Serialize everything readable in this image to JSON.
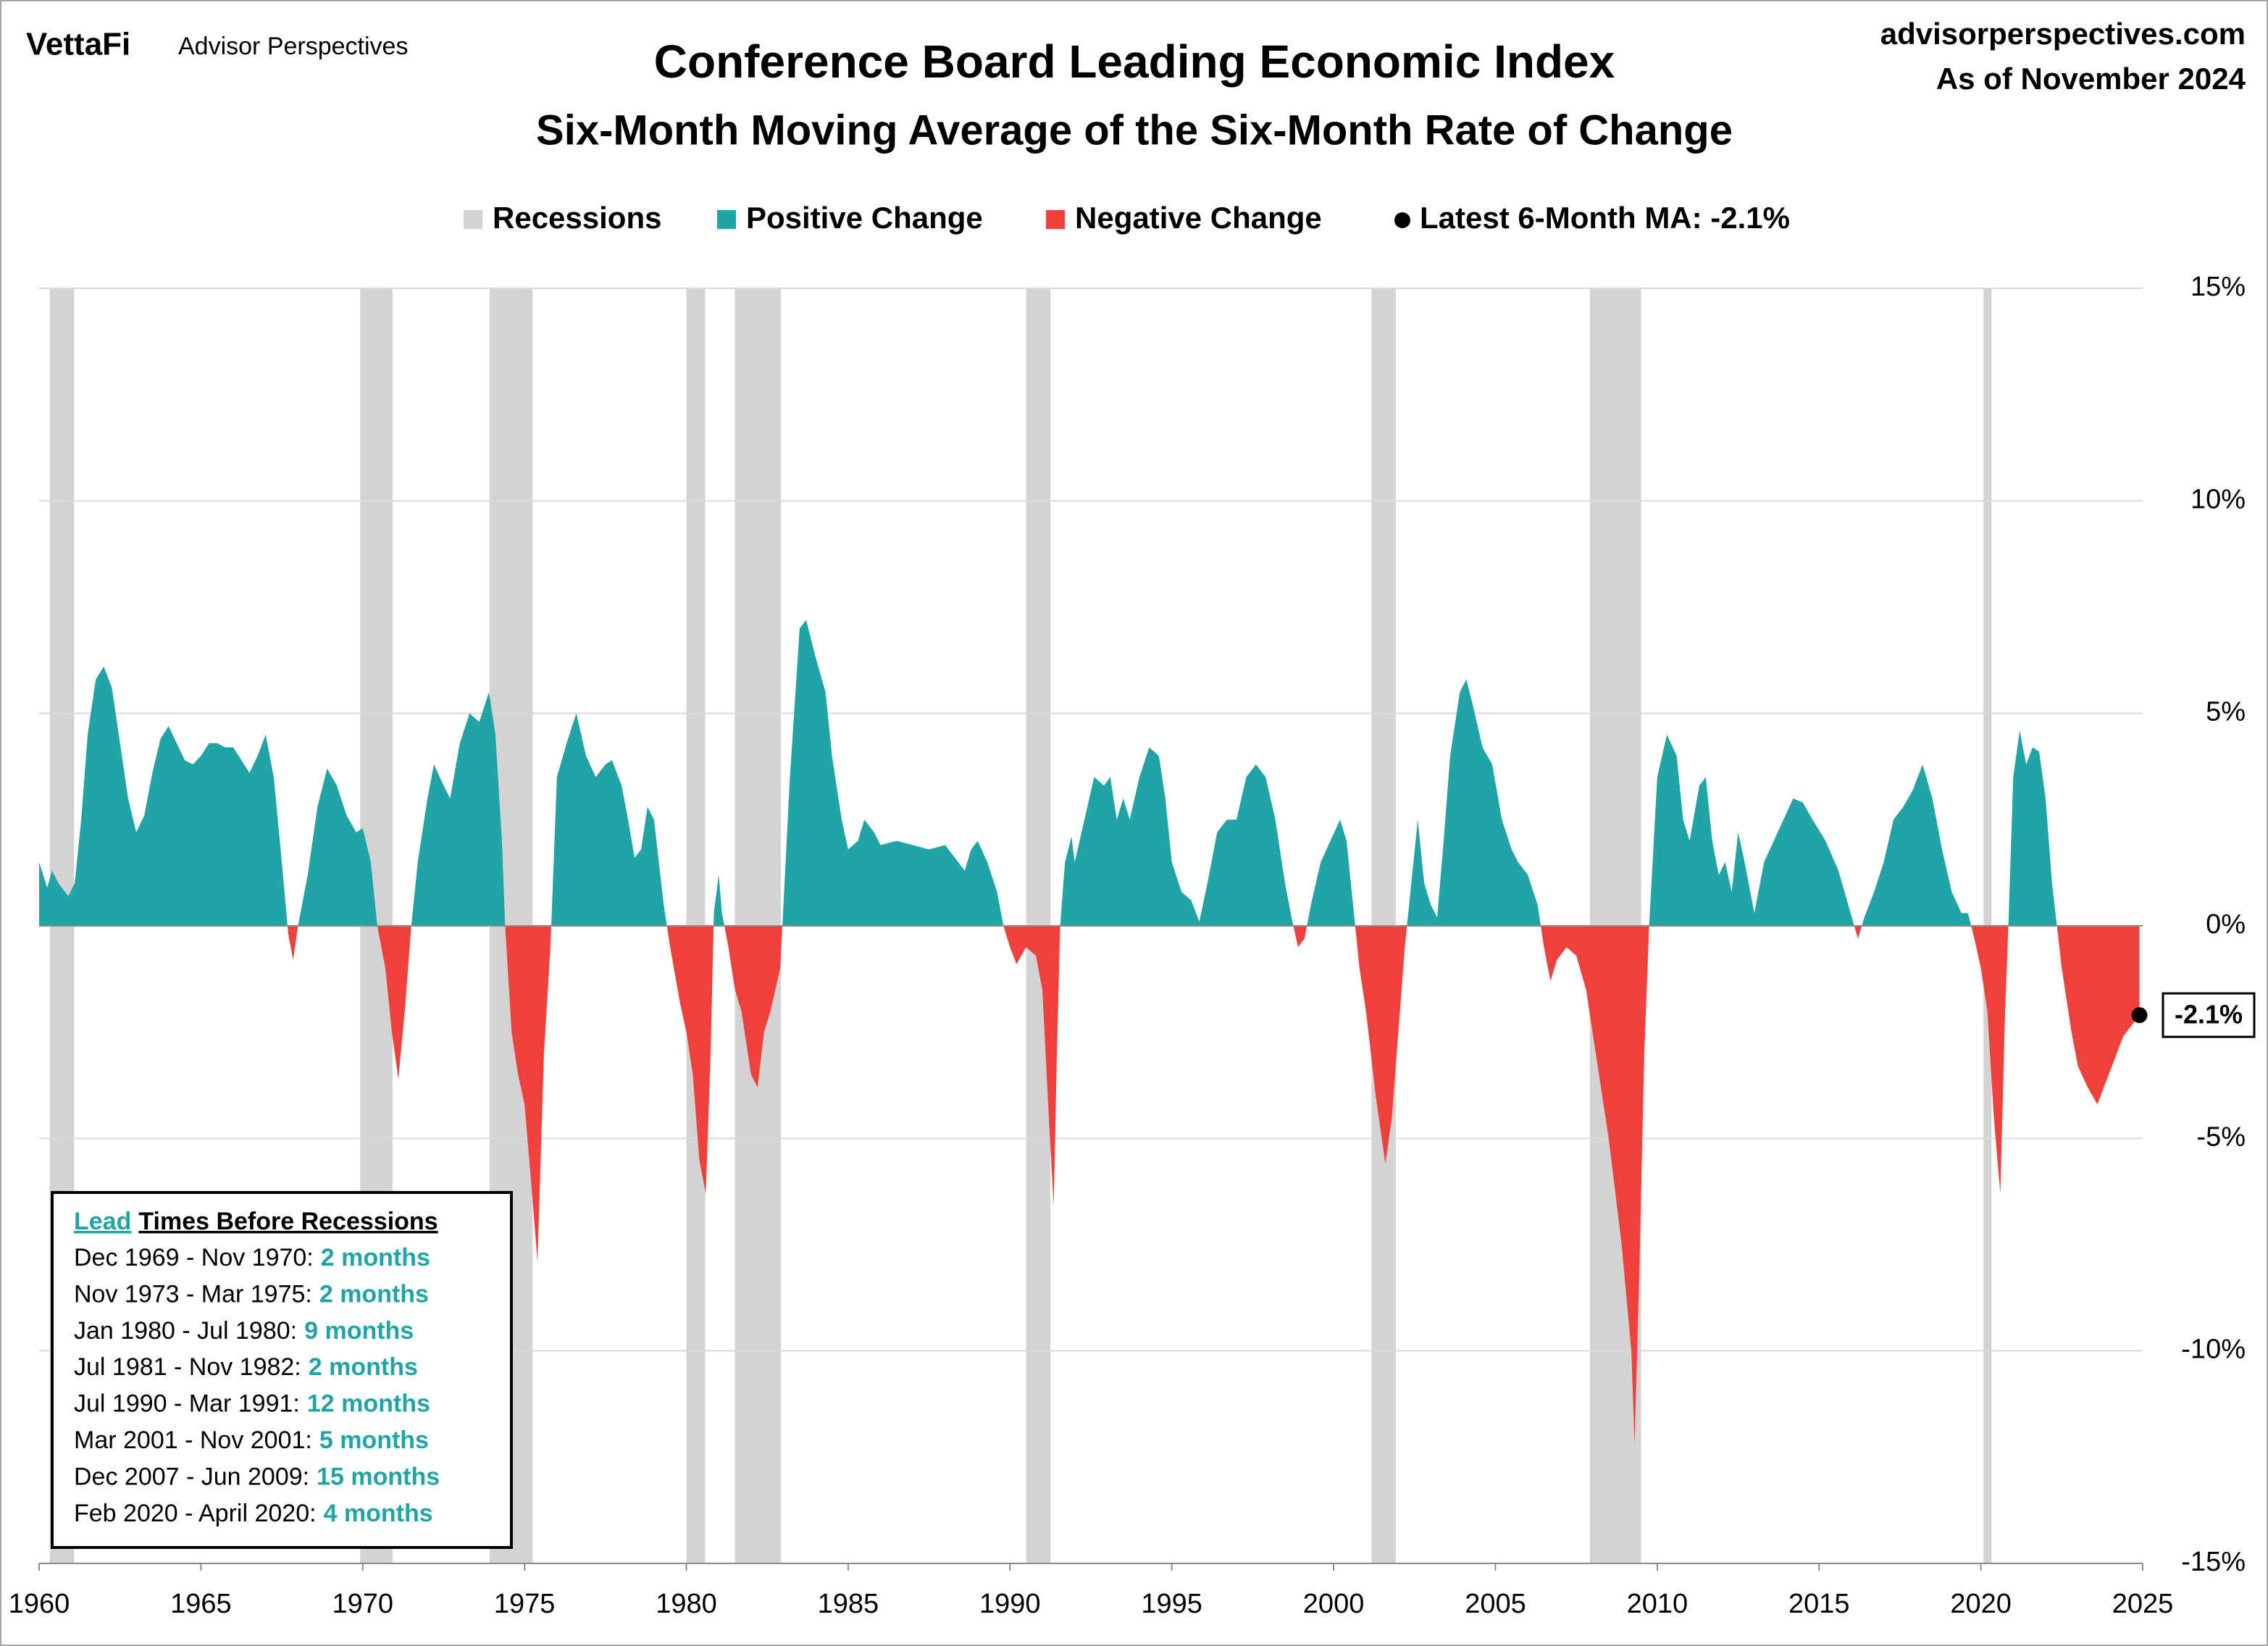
{
  "chart_data": {
    "type": "area",
    "brand": "VettaFi",
    "brand_sub": "Advisor Perspectives",
    "source": "advisorperspectives.com",
    "date_note": "As of November 2024",
    "title": "Conference Board Leading Economic Index",
    "subtitle": "Six-Month Moving Average of the Six-Month Rate of Change",
    "recessions": {
      "name": "Recessions",
      "color": "#d3d3d3",
      "periods": [
        [
          1960.33,
          1961.08
        ],
        [
          1969.92,
          1970.92
        ],
        [
          1973.92,
          1975.25
        ],
        [
          1980.0,
          1980.58
        ],
        [
          1981.5,
          1982.92
        ],
        [
          1990.5,
          1991.25
        ],
        [
          2001.17,
          2001.92
        ],
        [
          2007.92,
          2009.5
        ],
        [
          2020.08,
          2020.33
        ]
      ]
    },
    "positive": {
      "name": "Positive Change",
      "color": "#20a4a6"
    },
    "negative": {
      "name": "Negative Change",
      "color": "#f0403c"
    },
    "latest": {
      "label": "Latest 6-Month MA: -2.1%",
      "value": -2.1,
      "value_label": "-2.1%"
    },
    "x": [
      1960.0,
      1960.25,
      1960.4,
      1960.6,
      1960.9,
      1961.1,
      1961.3,
      1961.5,
      1961.75,
      1962.0,
      1962.25,
      1962.5,
      1962.75,
      1963.0,
      1963.25,
      1963.5,
      1963.75,
      1964.0,
      1964.25,
      1964.5,
      1964.75,
      1965.0,
      1965.25,
      1965.5,
      1965.75,
      1966.0,
      1966.25,
      1966.5,
      1966.75,
      1967.0,
      1967.25,
      1967.5,
      1967.7,
      1967.85,
      1968.0,
      1968.3,
      1968.6,
      1968.9,
      1969.2,
      1969.5,
      1969.8,
      1970.0,
      1970.25,
      1970.45,
      1970.7,
      1970.9,
      1971.1,
      1971.3,
      1971.5,
      1971.7,
      1972.0,
      1972.2,
      1972.5,
      1972.7,
      1973.0,
      1973.3,
      1973.6,
      1973.9,
      1974.1,
      1974.3,
      1974.4,
      1974.6,
      1974.8,
      1975.0,
      1975.2,
      1975.4,
      1975.6,
      1975.8,
      1976.0,
      1976.3,
      1976.6,
      1976.9,
      1977.2,
      1977.5,
      1977.7,
      1978.0,
      1978.2,
      1978.4,
      1978.6,
      1978.8,
      1979.0,
      1979.3,
      1979.5,
      1979.8,
      1980.0,
      1980.2,
      1980.4,
      1980.6,
      1980.75,
      1980.85,
      1981.0,
      1981.1,
      1981.3,
      1981.5,
      1981.7,
      1982.0,
      1982.2,
      1982.4,
      1982.6,
      1982.9,
      1983.2,
      1983.5,
      1983.7,
      1984.0,
      1984.3,
      1984.5,
      1984.8,
      1985.0,
      1985.3,
      1985.5,
      1985.8,
      1986.0,
      1986.5,
      1987.0,
      1987.5,
      1988.0,
      1988.3,
      1988.6,
      1988.8,
      1989.0,
      1989.3,
      1989.6,
      1989.8,
      1990.0,
      1990.2,
      1990.5,
      1990.8,
      1991.0,
      1991.2,
      1991.35,
      1991.45,
      1991.55,
      1991.7,
      1991.9,
      1992.0,
      1992.3,
      1992.6,
      1992.9,
      1993.1,
      1993.3,
      1993.5,
      1993.7,
      1994.0,
      1994.3,
      1994.6,
      1994.8,
      1995.0,
      1995.3,
      1995.6,
      1995.85,
      1996.1,
      1996.4,
      1996.7,
      1997.0,
      1997.3,
      1997.6,
      1997.9,
      1998.2,
      1998.5,
      1998.7,
      1998.9,
      1999.1,
      1999.3,
      1999.6,
      1999.9,
      2000.2,
      2000.4,
      2000.6,
      2000.8,
      2001.0,
      2001.3,
      2001.6,
      2001.8,
      2002.0,
      2002.2,
      2002.4,
      2002.6,
      2002.8,
      2003.0,
      2003.2,
      2003.4,
      2003.6,
      2003.9,
      2004.1,
      2004.3,
      2004.6,
      2004.9,
      2005.2,
      2005.5,
      2005.7,
      2006.0,
      2006.3,
      2006.5,
      2006.7,
      2006.9,
      2007.2,
      2007.5,
      2007.8,
      2008.2,
      2008.5,
      2008.9,
      2009.2,
      2009.3,
      2009.45,
      2009.6,
      2009.75,
      2010.0,
      2010.3,
      2010.6,
      2010.8,
      2011.0,
      2011.3,
      2011.5,
      2011.7,
      2011.9,
      2012.1,
      2012.3,
      2012.5,
      2012.7,
      2013.0,
      2013.3,
      2013.6,
      2013.9,
      2014.2,
      2014.5,
      2014.8,
      2015.2,
      2015.6,
      2015.9,
      2016.2,
      2016.4,
      2016.7,
      2017.0,
      2017.3,
      2017.6,
      2017.9,
      2018.2,
      2018.5,
      2018.8,
      2019.1,
      2019.4,
      2019.6,
      2019.8,
      2020.0,
      2020.2,
      2020.4,
      2020.6,
      2020.75,
      2020.85,
      2021.0,
      2021.2,
      2021.4,
      2021.6,
      2021.8,
      2022.0,
      2022.2,
      2022.35,
      2022.5,
      2022.8,
      2023.0,
      2023.3,
      2023.6,
      2023.8,
      2024.1,
      2024.4,
      2024.7,
      2024.9
    ],
    "values": [
      1.5,
      0.9,
      1.3,
      1.0,
      0.7,
      1.0,
      2.5,
      4.5,
      5.8,
      6.1,
      5.6,
      4.3,
      3.0,
      2.2,
      2.6,
      3.6,
      4.4,
      4.7,
      4.3,
      3.9,
      3.8,
      4.0,
      4.3,
      4.3,
      4.2,
      4.2,
      3.9,
      3.6,
      4.0,
      4.5,
      3.5,
      1.5,
      -0.2,
      -0.8,
      0.0,
      1.2,
      2.8,
      3.7,
      3.3,
      2.6,
      2.2,
      2.3,
      1.5,
      0,
      -1.0,
      -2.5,
      -3.6,
      -2.0,
      0,
      1.5,
      3.0,
      3.8,
      3.3,
      3.0,
      4.3,
      5.0,
      4.8,
      5.5,
      4.5,
      2.0,
      0,
      -2.5,
      -3.5,
      -4.2,
      -6.0,
      -7.9,
      -3.0,
      -0.5,
      3.5,
      4.3,
      5.0,
      4.0,
      3.5,
      3.8,
      3.9,
      3.3,
      2.5,
      1.6,
      1.8,
      2.8,
      2.5,
      0.5,
      -0.5,
      -1.8,
      -2.5,
      -3.5,
      -5.5,
      -6.3,
      -3.0,
      0.3,
      1.2,
      0.3,
      -0.5,
      -1.5,
      -2.0,
      -3.5,
      -3.8,
      -2.5,
      -2.0,
      -1.0,
      3.5,
      7.0,
      7.2,
      6.3,
      5.5,
      4.0,
      2.5,
      1.8,
      2.0,
      2.5,
      2.2,
      1.9,
      2.0,
      1.9,
      1.8,
      1.9,
      1.6,
      1.3,
      1.8,
      2.0,
      1.5,
      0.8,
      0,
      -0.5,
      -0.9,
      -0.5,
      -0.7,
      -1.5,
      -4.5,
      -6.6,
      -3.0,
      0,
      1.5,
      2.1,
      1.5,
      2.5,
      3.5,
      3.3,
      3.5,
      2.5,
      3.0,
      2.5,
      3.5,
      4.2,
      4.0,
      3.0,
      1.5,
      0.8,
      0.6,
      0.1,
      1.0,
      2.2,
      2.5,
      2.5,
      3.5,
      3.8,
      3.5,
      2.5,
      1.0,
      0.2,
      -0.5,
      -0.3,
      0.5,
      1.5,
      2.0,
      2.5,
      2.0,
      0.5,
      -1.0,
      -2.0,
      -4.0,
      -5.6,
      -4.5,
      -2.5,
      -0.5,
      1.0,
      2.5,
      1.0,
      0.5,
      0.2,
      2.0,
      4.0,
      5.5,
      5.8,
      5.2,
      4.2,
      3.8,
      2.5,
      1.8,
      1.5,
      1.2,
      0.5,
      -0.5,
      -1.3,
      -0.8,
      -0.5,
      -0.7,
      -1.5,
      -3.5,
      -5.0,
      -7.5,
      -10.0,
      -12.2,
      -8.0,
      -3.0,
      0,
      3.5,
      4.5,
      4.0,
      2.5,
      2.0,
      3.3,
      3.5,
      2.0,
      1.2,
      1.5,
      0.8,
      2.2,
      1.5,
      0.3,
      1.5,
      2.0,
      2.5,
      3.0,
      2.9,
      2.5,
      2.0,
      1.3,
      0.5,
      -0.3,
      0.2,
      0.8,
      1.5,
      2.5,
      2.8,
      3.2,
      3.8,
      3.0,
      1.8,
      0.8,
      0.3,
      0.3,
      -0.3,
      -1.0,
      -2.0,
      -4.5,
      -6.3,
      -2.0,
      0,
      3.5,
      4.6,
      3.8,
      4.2,
      4.1,
      3.0,
      1.0,
      0,
      -1.0,
      -2.5,
      -3.3,
      -3.8,
      -4.2,
      -3.8,
      -3.2,
      -2.6,
      -2.3,
      -2.1
    ],
    "xlim": [
      1960,
      2025
    ],
    "xticks": [
      1960,
      1965,
      1970,
      1975,
      1980,
      1985,
      1990,
      1995,
      2000,
      2005,
      2010,
      2015,
      2020,
      2025
    ],
    "ylim": [
      -15,
      15
    ],
    "yticks": [
      {
        "value": -15,
        "label": "-15%"
      },
      {
        "value": -10,
        "label": "-10%"
      },
      {
        "value": -5,
        "label": "-5%"
      },
      {
        "value": 0,
        "label": "0%"
      },
      {
        "value": 5,
        "label": "5%"
      },
      {
        "value": 10,
        "label": "10%"
      },
      {
        "value": 15,
        "label": "15%"
      }
    ],
    "grid": true,
    "lead_table": {
      "title_lead": "Lead",
      "title_rest": "Times Before Recessions",
      "rows": [
        {
          "period": "Dec 1969 - Nov 1970:",
          "lead": "2 months"
        },
        {
          "period": "Nov 1973 - Mar 1975:",
          "lead": "2 months"
        },
        {
          "period": "Jan 1980 - Jul 1980:",
          "lead": "9 months"
        },
        {
          "period": "Jul 1981 - Nov 1982:",
          "lead": "2 months"
        },
        {
          "period": "Jul 1990 - Mar 1991:",
          "lead": "12 months"
        },
        {
          "period": "Mar 2001 - Nov 2001:",
          "lead": "5 months"
        },
        {
          "period": "Dec 2007 - Jun 2009:",
          "lead": "15 months"
        },
        {
          "period": "Feb 2020 - April 2020:",
          "lead": "4 months"
        }
      ]
    }
  }
}
